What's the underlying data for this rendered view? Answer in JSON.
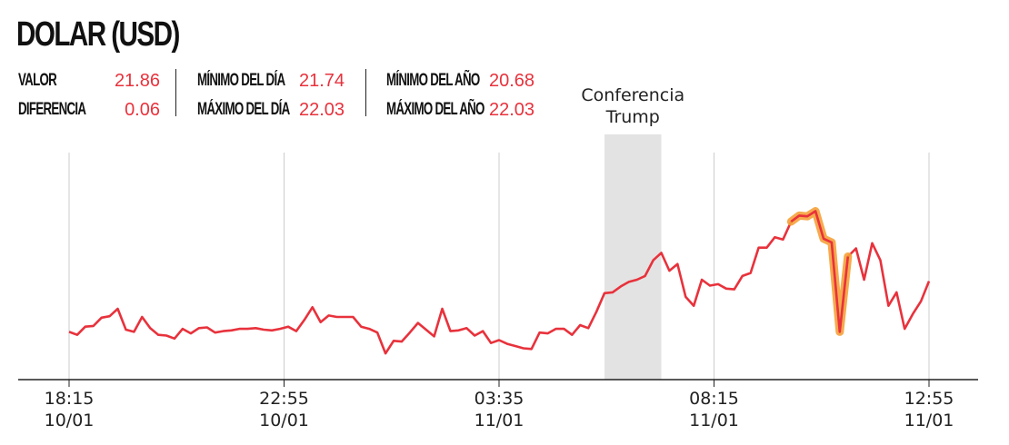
{
  "header": {
    "title": "DOLAR (USD)"
  },
  "stats": {
    "valor_label": "VALOR",
    "valor": "21.86",
    "diferencia_label": "DIFERENCIA",
    "diferencia": "0.06",
    "min_dia_label": "MÍNIMO DEL DÍA",
    "min_dia": "21.74",
    "max_dia_label": "MÁXIMO DEL DÍA",
    "max_dia": "22.03",
    "min_anio_label": "MÍNIMO DEL AÑO",
    "min_anio": "20.68",
    "max_anio_label": "MÁXIMO DEL AÑO",
    "max_anio": "22.03"
  },
  "colors": {
    "line": "#e8323c",
    "highlight": "#f5a13a",
    "band": "#e3e3e3",
    "grid": "#cccccc",
    "axis": "#222222"
  },
  "chart_data": {
    "type": "line",
    "title": "",
    "xlabel": "",
    "ylabel": "",
    "ylim": [
      21.74,
      22.03
    ],
    "x_tick_labels": [
      {
        "time": "18:15",
        "date": "10/01"
      },
      {
        "time": "22:55",
        "date": "10/01"
      },
      {
        "time": "03:35",
        "date": "11/01"
      },
      {
        "time": "08:15",
        "date": "11/01"
      },
      {
        "time": "12:55",
        "date": "11/01"
      }
    ],
    "annotation": {
      "lines": [
        "Conferencia",
        "Trump"
      ],
      "x_start_index": 66,
      "x_end_index": 73
    },
    "series": [
      {
        "values": [
          21.787,
          21.783,
          21.794,
          21.795,
          21.806,
          21.808,
          21.818,
          21.79,
          21.787,
          21.807,
          21.792,
          21.783,
          21.782,
          21.778,
          21.791,
          21.785,
          21.792,
          21.793,
          21.786,
          21.788,
          21.789,
          21.791,
          21.791,
          21.792,
          21.79,
          21.789,
          21.791,
          21.794,
          21.788,
          21.803,
          21.82,
          21.8,
          21.809,
          21.807,
          21.807,
          21.807,
          21.794,
          21.791,
          21.786,
          21.758,
          21.775,
          21.774,
          21.786,
          21.799,
          21.79,
          21.781,
          21.818,
          21.788,
          21.789,
          21.792,
          21.782,
          21.788,
          21.772,
          21.776,
          21.771,
          21.768,
          21.765,
          21.764,
          21.786,
          21.785,
          21.791,
          21.791,
          21.783,
          21.796,
          21.792,
          21.814,
          21.839,
          21.84,
          21.848,
          21.854,
          21.857,
          21.862,
          21.883,
          21.893,
          21.869,
          21.878,
          21.834,
          21.822,
          21.857,
          21.849,
          21.851,
          21.845,
          21.844,
          21.862,
          21.866,
          21.9,
          21.9,
          21.914,
          21.911,
          21.935,
          21.943,
          21.942,
          21.949,
          21.912,
          21.907,
          21.787,
          21.888,
          21.899,
          21.857,
          21.906,
          21.883,
          21.822,
          21.84,
          21.791,
          21.811,
          21.828,
          21.855
        ]
      }
    ],
    "highlight_range_indices": [
      89,
      96
    ]
  }
}
